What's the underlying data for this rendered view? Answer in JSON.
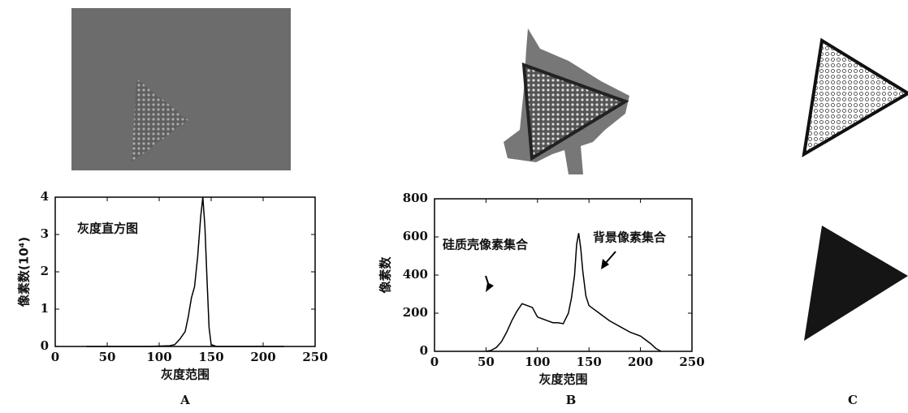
{
  "chart_data": [
    {
      "type": "line",
      "y_label": "像素数(10⁴)",
      "x_label": "灰度范围",
      "annotations": [
        "灰度直方图"
      ],
      "x": [
        30,
        60,
        90,
        110,
        115,
        120,
        125,
        128,
        131,
        134,
        137,
        140,
        142,
        144,
        146,
        148,
        150,
        155,
        180,
        220
      ],
      "series": [
        {
          "color": "#000000",
          "values": [
            0,
            0,
            0,
            0.02,
            0.05,
            0.2,
            0.4,
            0.8,
            1.3,
            1.6,
            2.4,
            3.5,
            4,
            3.2,
            1.8,
            0.5,
            0.05,
            0,
            0,
            0
          ]
        }
      ],
      "xlim": [
        0,
        250
      ],
      "xticks": [
        0,
        50,
        100,
        150,
        200,
        250
      ],
      "ylim": [
        0,
        4
      ],
      "yticks": [
        0,
        1,
        2,
        3,
        4
      ]
    },
    {
      "type": "line",
      "y_label": "像素数",
      "x_label": "灰度范围",
      "annotations": [
        "硅质壳像素集合",
        "背景像素集合"
      ],
      "x": [
        50,
        55,
        60,
        65,
        70,
        75,
        80,
        85,
        90,
        95,
        100,
        105,
        110,
        115,
        120,
        125,
        130,
        133,
        136,
        138,
        140,
        142,
        144,
        147,
        150,
        155,
        160,
        170,
        180,
        190,
        200,
        205,
        210,
        215,
        220
      ],
      "series": [
        {
          "color": "#000000",
          "values": [
            0,
            5,
            20,
            50,
            100,
            160,
            210,
            250,
            240,
            230,
            180,
            170,
            160,
            150,
            150,
            145,
            200,
            280,
            400,
            560,
            620,
            540,
            420,
            290,
            240,
            220,
            200,
            160,
            130,
            100,
            80,
            60,
            40,
            15,
            0
          ]
        }
      ],
      "xlim": [
        0,
        250
      ],
      "xticks": [
        0,
        50,
        100,
        150,
        200,
        250
      ],
      "ylim": [
        0,
        800
      ],
      "yticks": [
        0,
        200,
        400,
        600,
        800
      ]
    }
  ],
  "panel_labels": [
    "A",
    "B",
    "C"
  ]
}
